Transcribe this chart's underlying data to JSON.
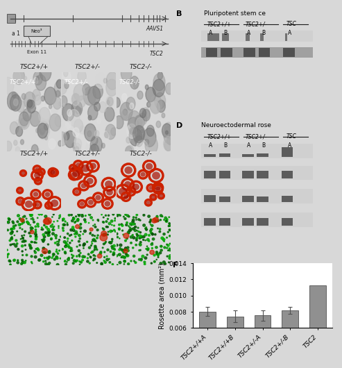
{
  "fig_bg": "#d8d8d8",
  "panel_bg": "#ffffff",
  "bar_chart": {
    "title": "F",
    "ylabel": "Rosette area (mm²)",
    "ylim": [
      0.006,
      0.014
    ],
    "yticks": [
      0.006,
      0.008,
      0.01,
      0.012,
      0.014
    ],
    "ytick_labels": [
      "0.006",
      "0.008",
      "0.010",
      "0.012",
      "0.014"
    ],
    "categories": [
      "TSC2+/+A",
      "TSC2+/+B",
      "TSC2+/-A",
      "TSC2+/-B",
      "TSC2"
    ],
    "values": [
      0.008,
      0.0074,
      0.0075,
      0.00815,
      0.0113
    ],
    "errors": [
      0.00055,
      0.00075,
      0.00065,
      0.00045,
      0.0
    ],
    "bar_color": "#909090",
    "bar_edge_color": "#505050",
    "label_fontsize": 6.5,
    "ylabel_fontsize": 7,
    "title_fontsize": 9
  },
  "panels": {
    "A_label": "a 1",
    "AAVS1_label": "AAVS1",
    "neo_label": "Neo³",
    "exon11_label": "Exon 11",
    "TSC2_label": "TSC2",
    "cell_labels_C": [
      "TSC2+/+",
      "TSC2+/-",
      "TSC2-/-"
    ],
    "cell_labels_E_top": [
      "TSC2+/+",
      "TSC2+/-",
      "TSC2-/-"
    ],
    "cell_labels_E_bot": [
      "TSC2+/+",
      "TSC2+/-",
      "TSC2-/-"
    ],
    "B_title": "Pluripotent stem ce",
    "B_genotypes": "TSC2+/+  TSC2+/-  TSC",
    "B_AB": "A  B  A  B  A",
    "D_title": "Neuroectodermal rose",
    "D_genotypes": "TSC2+/+  TSC2+/-  TSC",
    "D_AB": "A  B  A  B  A",
    "panel_B_label": "B",
    "panel_D_label": "D"
  },
  "colors": {
    "white": "#ffffff",
    "light_gray": "#c8c8c8",
    "mid_gray": "#989898",
    "dark_gray": "#484848",
    "black": "#1a1a1a",
    "red_cell": "#cc2200",
    "green_cell": "#226600",
    "gel_band_light": "#b0b0b0",
    "gel_band_dark": "#606060",
    "gel_bg_light": "#d0d0d0",
    "gel_bg_dark": "#a0a0a0"
  }
}
